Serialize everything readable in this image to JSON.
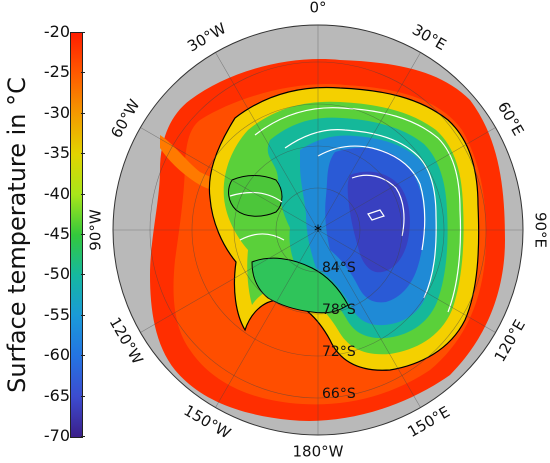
{
  "colorbar": {
    "title": "Surface temperature in °C",
    "ticks": [
      "-20",
      "-25",
      "-30",
      "-35",
      "-40",
      "-45",
      "-50",
      "-55",
      "-60",
      "-65",
      "-70"
    ],
    "colors": [
      "#ff1e00",
      "#ff5a00",
      "#f39a00",
      "#e2d400",
      "#a8e61a",
      "#33c83c",
      "#15b8a0",
      "#1a9ad8",
      "#2474e2",
      "#3c4cd0",
      "#3b1f8a"
    ]
  },
  "map": {
    "projection": "south polar stereographic",
    "longitude_labels": [
      {
        "text": "0°",
        "lon": 0
      },
      {
        "text": "30°E",
        "lon": 30
      },
      {
        "text": "60°E",
        "lon": 60
      },
      {
        "text": "90°E",
        "lon": 90
      },
      {
        "text": "120°E",
        "lon": 120
      },
      {
        "text": "150°E",
        "lon": 150
      },
      {
        "text": "180°W",
        "lon": 180
      },
      {
        "text": "150°W",
        "lon": -150
      },
      {
        "text": "120°W",
        "lon": -120
      },
      {
        "text": "90°W",
        "lon": -90
      },
      {
        "text": "60°W",
        "lon": -60
      },
      {
        "text": "30°W",
        "lon": -30
      }
    ],
    "latitude_labels": [
      "84°S",
      "78°S",
      "72°S",
      "66°S"
    ],
    "pole_marker": "*",
    "colors": {
      "background": "#b9b9b9",
      "ocean_warm": "#ff2a00",
      "coast_line": "#000000",
      "contour_line": "#ffffff"
    }
  }
}
